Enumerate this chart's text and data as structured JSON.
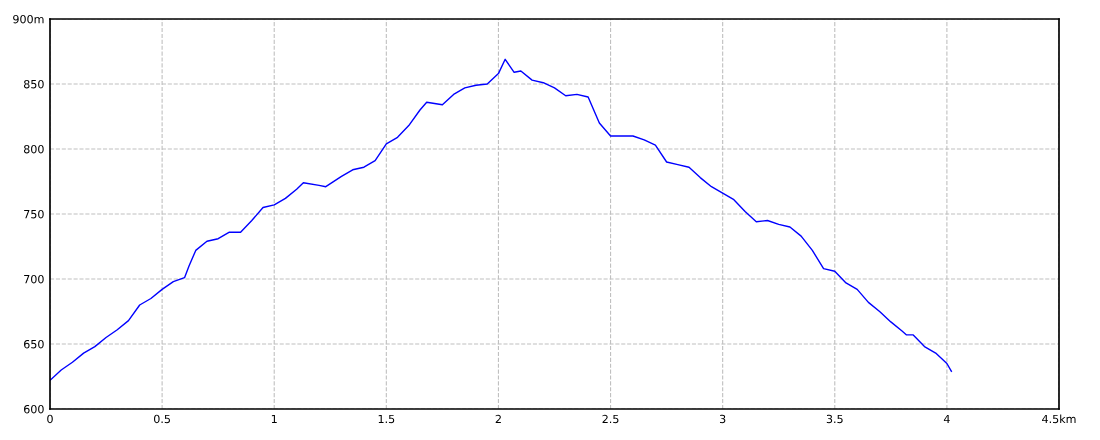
{
  "chart_data": {
    "type": "line",
    "xlim": [
      0,
      4.5
    ],
    "ylim": [
      600,
      900
    ],
    "xticks": [
      0,
      0.5,
      1,
      1.5,
      2,
      2.5,
      3,
      3.5,
      4,
      {
        "value": 4.5,
        "label": "4.5km"
      }
    ],
    "yticks": [
      600,
      650,
      700,
      750,
      800,
      850,
      {
        "value": 900,
        "label": "900m"
      }
    ],
    "grid": true,
    "line_style": "solid",
    "marker": "none",
    "series": [
      {
        "color": "#0000ff",
        "x": [
          0,
          0.05,
          0.1,
          0.15,
          0.2,
          0.25,
          0.3,
          0.35,
          0.4,
          0.45,
          0.5,
          0.55,
          0.6,
          0.62,
          0.65,
          0.7,
          0.75,
          0.8,
          0.85,
          0.9,
          0.95,
          1.0,
          1.05,
          1.1,
          1.13,
          1.2,
          1.23,
          1.3,
          1.35,
          1.4,
          1.45,
          1.5,
          1.55,
          1.6,
          1.65,
          1.68,
          1.75,
          1.8,
          1.85,
          1.9,
          1.95,
          2.0,
          2.03,
          2.05,
          2.07,
          2.1,
          2.15,
          2.2,
          2.25,
          2.3,
          2.35,
          2.4,
          2.45,
          2.5,
          2.6,
          2.65,
          2.7,
          2.75,
          2.8,
          2.85,
          2.9,
          2.95,
          3.0,
          3.05,
          3.1,
          3.15,
          3.2,
          3.25,
          3.3,
          3.35,
          3.4,
          3.45,
          3.5,
          3.55,
          3.6,
          3.65,
          3.7,
          3.75,
          3.8,
          3.82,
          3.85,
          3.9,
          3.95,
          4.0,
          4.02
        ],
        "values": [
          622,
          630,
          636,
          643,
          648,
          655,
          661,
          668,
          680,
          685,
          692,
          698,
          701,
          710,
          722,
          729,
          731,
          736,
          736,
          745,
          755,
          757,
          762,
          769,
          774,
          772,
          771,
          779,
          784,
          786,
          791,
          804,
          809,
          818,
          830,
          836,
          834,
          842,
          847,
          849,
          850,
          858,
          869,
          864,
          859,
          860,
          853,
          851,
          847,
          841,
          842,
          840,
          820,
          810,
          810,
          807,
          803,
          790,
          788,
          786,
          778,
          771,
          766,
          761,
          752,
          744,
          745,
          742,
          740,
          733,
          722,
          708,
          706,
          697,
          692,
          682,
          675,
          667,
          660,
          657,
          657,
          648,
          643,
          635,
          629
        ]
      }
    ]
  }
}
